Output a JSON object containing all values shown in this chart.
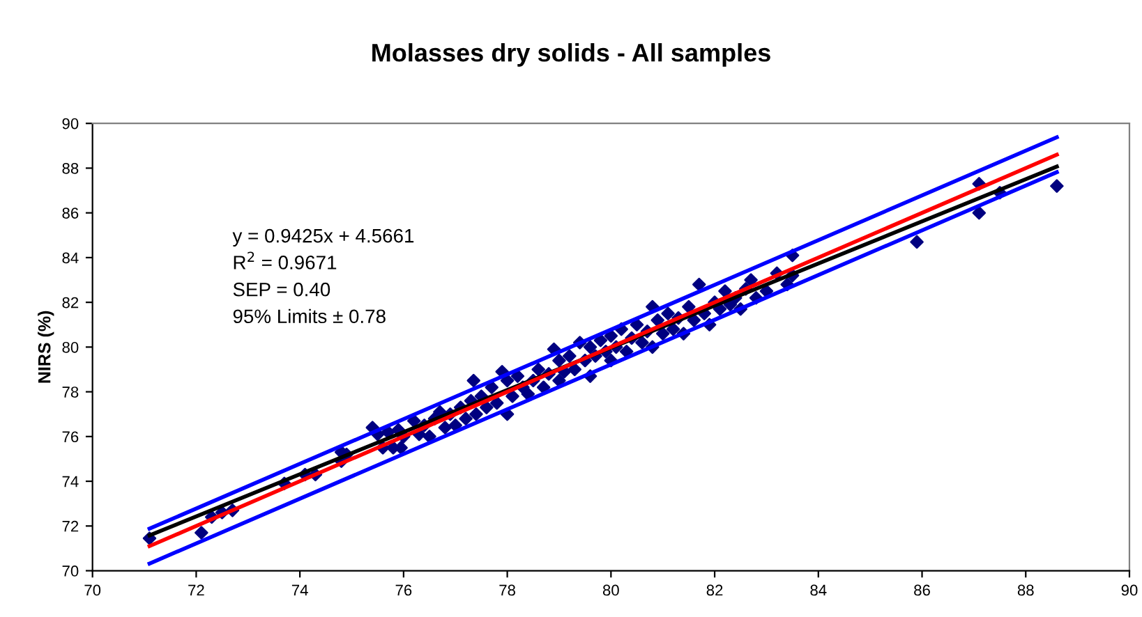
{
  "chart_data": {
    "type": "scatter",
    "title": "Molasses dry solids - All samples",
    "ylabel": "NIRS (%)",
    "xlim": [
      70,
      90
    ],
    "ylim": [
      70,
      90
    ],
    "xticks": [
      70,
      72,
      74,
      76,
      78,
      80,
      82,
      84,
      86,
      88,
      90
    ],
    "yticks": [
      70,
      72,
      74,
      76,
      78,
      80,
      82,
      84,
      86,
      88,
      90
    ],
    "grid": false,
    "legend": false,
    "annotations": [
      "y = 0.9425x + 4.5661",
      "R$^{2}$ = 0.9671",
      "SEP = 0.40",
      "95% Limits ± 0.78"
    ],
    "series": [
      {
        "marker": "diamond",
        "color": "#000080",
        "x": [
          71.1,
          72.1,
          72.3,
          72.5,
          72.7,
          73.7,
          74.1,
          74.3,
          74.8,
          74.8,
          74.9,
          75.4,
          75.5,
          75.6,
          75.7,
          75.8,
          75.9,
          76.0,
          75.95,
          76.2,
          76.3,
          76.4,
          76.5,
          76.6,
          76.7,
          76.8,
          76.9,
          77.0,
          77.1,
          77.2,
          77.3,
          77.35,
          77.4,
          77.5,
          77.6,
          77.7,
          77.8,
          77.9,
          78.0,
          78.0,
          78.1,
          78.2,
          78.3,
          78.4,
          78.5,
          78.6,
          78.7,
          78.8,
          78.9,
          79.0,
          79.0,
          79.1,
          79.2,
          79.3,
          79.4,
          79.5,
          79.6,
          79.6,
          79.7,
          79.8,
          79.9,
          80.0,
          80.0,
          80.1,
          80.2,
          80.3,
          80.4,
          80.5,
          80.6,
          80.7,
          80.8,
          80.8,
          80.9,
          81.0,
          81.1,
          81.2,
          81.3,
          81.4,
          81.5,
          81.6,
          81.7,
          81.8,
          81.9,
          82.0,
          82.1,
          82.2,
          82.3,
          82.4,
          82.5,
          82.6,
          82.7,
          82.8,
          83.0,
          83.2,
          83.4,
          83.5,
          83.5,
          85.9,
          87.1,
          87.1,
          87.5,
          88.6
        ],
        "values": [
          71.45,
          71.7,
          72.4,
          72.6,
          72.7,
          73.9,
          74.3,
          74.3,
          74.9,
          75.3,
          75.2,
          76.4,
          76.1,
          75.5,
          76.2,
          75.5,
          76.3,
          76.0,
          75.5,
          76.7,
          76.1,
          76.5,
          76.0,
          76.8,
          77.1,
          76.4,
          77.0,
          76.5,
          77.3,
          76.8,
          77.6,
          78.5,
          77.0,
          77.8,
          77.3,
          78.2,
          77.5,
          78.9,
          77.0,
          78.5,
          77.8,
          78.7,
          78.2,
          77.9,
          78.5,
          79.0,
          78.2,
          78.8,
          79.9,
          78.5,
          79.4,
          78.9,
          79.6,
          79.0,
          80.2,
          79.4,
          78.7,
          80.0,
          79.6,
          80.3,
          79.8,
          79.4,
          80.5,
          80.0,
          80.8,
          79.8,
          80.4,
          81.0,
          80.2,
          80.7,
          81.8,
          80.0,
          81.2,
          80.6,
          81.5,
          80.8,
          81.3,
          80.6,
          81.8,
          81.2,
          82.8,
          81.5,
          81.0,
          82.0,
          81.7,
          82.5,
          81.9,
          82.2,
          81.7,
          82.6,
          83.0,
          82.2,
          82.5,
          83.3,
          82.8,
          84.1,
          83.2,
          84.7,
          87.3,
          86.0,
          86.9,
          87.2
        ]
      },
      {
        "type": "line",
        "color": "#000000",
        "x": [
          71.1,
          88.6
        ],
        "values": [
          71.58,
          88.07
        ]
      },
      {
        "type": "line",
        "color": "#ff0000",
        "x": [
          71.1,
          88.6
        ],
        "values": [
          71.1,
          88.6
        ]
      },
      {
        "type": "line",
        "color": "#0000ff",
        "x": [
          71.1,
          88.6
        ],
        "values": [
          71.88,
          89.38
        ]
      },
      {
        "type": "line",
        "color": "#0000ff",
        "x": [
          71.1,
          88.6
        ],
        "values": [
          70.32,
          87.82
        ]
      }
    ]
  }
}
